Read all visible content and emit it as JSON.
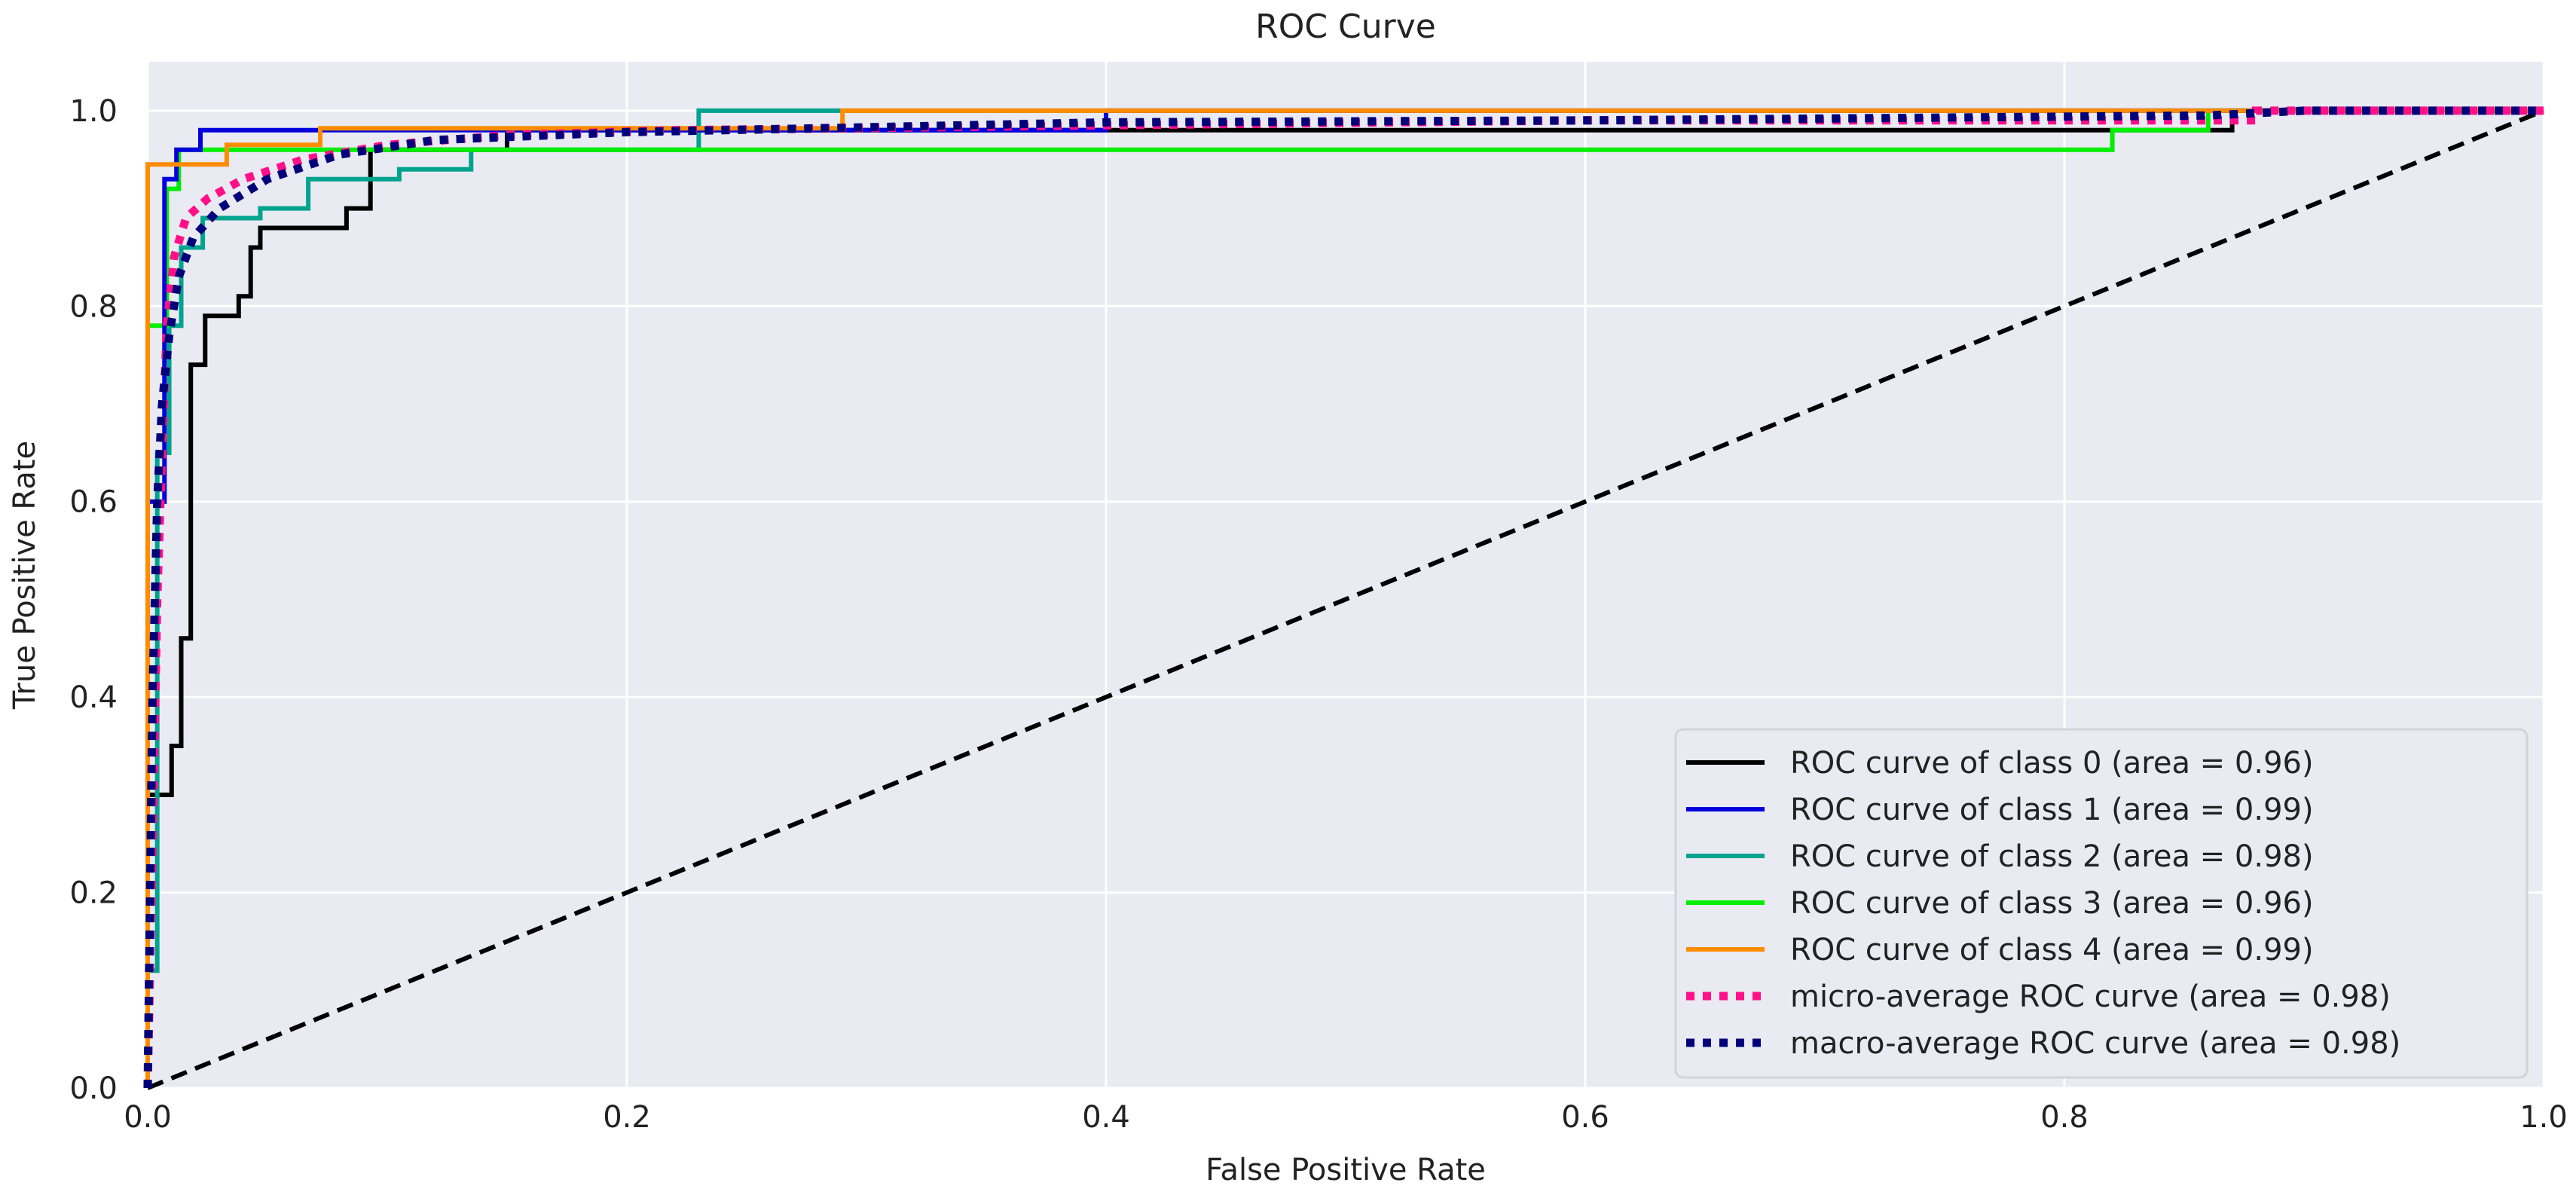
{
  "chart_data": {
    "type": "line",
    "title": "ROC Curve",
    "xlabel": "False Positive Rate",
    "ylabel": "True Positive Rate",
    "xlim": [
      0.0,
      1.0
    ],
    "ylim": [
      0.0,
      1.05
    ],
    "grid": true,
    "legend_position": "lower-right",
    "x_ticks": [
      {
        "value": 0.0,
        "label": "0.0"
      },
      {
        "value": 0.2,
        "label": "0.2"
      },
      {
        "value": 0.4,
        "label": "0.4"
      },
      {
        "value": 0.6,
        "label": "0.6"
      },
      {
        "value": 0.8,
        "label": "0.8"
      },
      {
        "value": 1.0,
        "label": "1.0"
      }
    ],
    "y_ticks": [
      {
        "value": 0.0,
        "label": "0.0"
      },
      {
        "value": 0.2,
        "label": "0.2"
      },
      {
        "value": 0.4,
        "label": "0.4"
      },
      {
        "value": 0.6,
        "label": "0.6"
      },
      {
        "value": 0.8,
        "label": "0.8"
      },
      {
        "value": 1.0,
        "label": "1.0"
      }
    ],
    "series": [
      {
        "name": "ROC curve of class 0 (area = 0.96)",
        "slug": "class-0",
        "color": "#000000",
        "style": "solid",
        "points": [
          [
            0,
            0
          ],
          [
            0,
            0.3
          ],
          [
            0.01,
            0.3
          ],
          [
            0.01,
            0.35
          ],
          [
            0.014,
            0.35
          ],
          [
            0.014,
            0.46
          ],
          [
            0.018,
            0.46
          ],
          [
            0.018,
            0.74
          ],
          [
            0.024,
            0.74
          ],
          [
            0.024,
            0.79
          ],
          [
            0.038,
            0.79
          ],
          [
            0.038,
            0.81
          ],
          [
            0.043,
            0.81
          ],
          [
            0.043,
            0.86
          ],
          [
            0.047,
            0.86
          ],
          [
            0.047,
            0.88
          ],
          [
            0.083,
            0.88
          ],
          [
            0.083,
            0.9
          ],
          [
            0.093,
            0.9
          ],
          [
            0.093,
            0.96
          ],
          [
            0.15,
            0.96
          ],
          [
            0.15,
            0.98
          ],
          [
            0.87,
            0.98
          ],
          [
            0.87,
            1.0
          ],
          [
            1.0,
            1.0
          ]
        ]
      },
      {
        "name": "ROC curve of class 1 (area = 0.99)",
        "slug": "class-1",
        "color": "#0000dd",
        "style": "solid",
        "points": [
          [
            0,
            0
          ],
          [
            0,
            0.6
          ],
          [
            0.007,
            0.6
          ],
          [
            0.007,
            0.93
          ],
          [
            0.012,
            0.93
          ],
          [
            0.012,
            0.96
          ],
          [
            0.022,
            0.96
          ],
          [
            0.022,
            0.98
          ],
          [
            0.4,
            0.98
          ],
          [
            0.4,
            1.0
          ],
          [
            1.0,
            1.0
          ]
        ]
      },
      {
        "name": "ROC curve of class 2 (area = 0.98)",
        "slug": "class-2",
        "color": "#00a38d",
        "style": "solid",
        "points": [
          [
            0,
            0
          ],
          [
            0,
            0.12
          ],
          [
            0.004,
            0.12
          ],
          [
            0.004,
            0.65
          ],
          [
            0.009,
            0.65
          ],
          [
            0.009,
            0.78
          ],
          [
            0.014,
            0.78
          ],
          [
            0.014,
            0.86
          ],
          [
            0.023,
            0.86
          ],
          [
            0.023,
            0.89
          ],
          [
            0.047,
            0.89
          ],
          [
            0.047,
            0.9
          ],
          [
            0.067,
            0.9
          ],
          [
            0.067,
            0.93
          ],
          [
            0.105,
            0.93
          ],
          [
            0.105,
            0.94
          ],
          [
            0.135,
            0.94
          ],
          [
            0.135,
            0.96
          ],
          [
            0.23,
            0.96
          ],
          [
            0.23,
            1.0
          ],
          [
            1.0,
            1.0
          ]
        ]
      },
      {
        "name": "ROC curve of class 3 (area = 0.96)",
        "slug": "class-3",
        "color": "#00ee00",
        "style": "solid",
        "points": [
          [
            0,
            0
          ],
          [
            0,
            0.78
          ],
          [
            0.008,
            0.78
          ],
          [
            0.008,
            0.92
          ],
          [
            0.013,
            0.92
          ],
          [
            0.013,
            0.96
          ],
          [
            0.82,
            0.96
          ],
          [
            0.82,
            0.98
          ],
          [
            0.86,
            0.98
          ],
          [
            0.86,
            1.0
          ],
          [
            1.0,
            1.0
          ]
        ]
      },
      {
        "name": "ROC curve of class 4 (area = 0.99)",
        "slug": "class-4",
        "color": "#ff8c00",
        "style": "solid",
        "points": [
          [
            0,
            0
          ],
          [
            0,
            0.945
          ],
          [
            0.033,
            0.945
          ],
          [
            0.033,
            0.965
          ],
          [
            0.072,
            0.965
          ],
          [
            0.072,
            0.982
          ],
          [
            0.29,
            0.982
          ],
          [
            0.29,
            1.0
          ],
          [
            1.0,
            1.0
          ]
        ]
      },
      {
        "name": "micro-average ROC curve (area = 0.98)",
        "slug": "micro-average",
        "color": "#ff0f88",
        "style": "dotted",
        "points": [
          [
            0,
            0
          ],
          [
            0.002,
            0.25
          ],
          [
            0.004,
            0.5
          ],
          [
            0.006,
            0.65
          ],
          [
            0.008,
            0.78
          ],
          [
            0.011,
            0.85
          ],
          [
            0.016,
            0.89
          ],
          [
            0.025,
            0.91
          ],
          [
            0.04,
            0.93
          ],
          [
            0.065,
            0.95
          ],
          [
            0.1,
            0.965
          ],
          [
            0.15,
            0.975
          ],
          [
            0.22,
            0.98
          ],
          [
            0.4,
            0.985
          ],
          [
            0.6,
            0.99
          ],
          [
            0.88,
            0.99
          ],
          [
            0.88,
            1.0
          ],
          [
            1.0,
            1.0
          ]
        ]
      },
      {
        "name": "macro-average ROC curve (area = 0.98)",
        "slug": "macro-average",
        "color": "#00007a",
        "style": "dotted",
        "points": [
          [
            0,
            0
          ],
          [
            0.002,
            0.4
          ],
          [
            0.004,
            0.6
          ],
          [
            0.006,
            0.7
          ],
          [
            0.009,
            0.77
          ],
          [
            0.013,
            0.83
          ],
          [
            0.019,
            0.87
          ],
          [
            0.03,
            0.9
          ],
          [
            0.05,
            0.93
          ],
          [
            0.08,
            0.955
          ],
          [
            0.12,
            0.97
          ],
          [
            0.2,
            0.978
          ],
          [
            0.4,
            0.988
          ],
          [
            0.6,
            0.99
          ],
          [
            0.86,
            0.995
          ],
          [
            0.9,
            1.0
          ],
          [
            1.0,
            1.0
          ]
        ]
      },
      {
        "name": "",
        "slug": "chance-diagonal",
        "color": "#000000",
        "style": "dashed",
        "points": [
          [
            0,
            0
          ],
          [
            1,
            1
          ]
        ]
      }
    ]
  }
}
